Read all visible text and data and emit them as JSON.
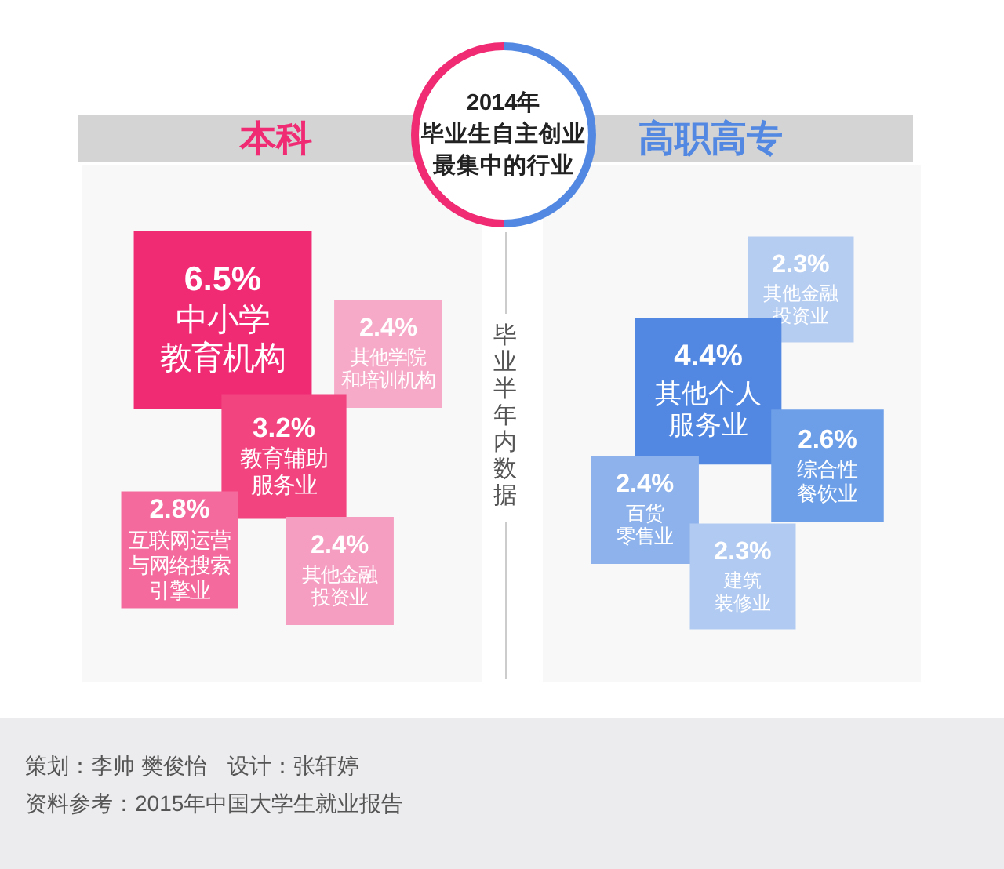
{
  "chart_data": [
    {
      "type": "other",
      "title": "2014年毕业生自主创业最集中的行业",
      "annotations": [
        "毕业半年内数据",
        "策划：李帅 樊俊怡",
        "设计：张轩婷",
        "资料参考：2015年中国大学生就业报告"
      ]
    },
    {
      "type": "other",
      "title": "本科",
      "categories": [
        "中小学教育机构",
        "其他学院和培训机构",
        "教育辅助服务业",
        "互联网运营与网络搜索引擎业",
        "其他金融投资业"
      ],
      "values": [
        6.5,
        2.4,
        3.2,
        2.8,
        2.4
      ],
      "value_labels": [
        "6.5%",
        "2.4%",
        "3.2%",
        "2.8%",
        "2.4%"
      ],
      "colors": [
        "#f02b74",
        "#f7aac8",
        "#f2447f",
        "#f46a9d",
        "#f59ec1"
      ]
    },
    {
      "type": "other",
      "title": "高职高专",
      "categories": [
        "其他金融投资业",
        "其他个人服务业",
        "综合性餐饮业",
        "百货零售业",
        "建筑装修业"
      ],
      "values": [
        2.3,
        4.4,
        2.6,
        2.4,
        2.3
      ],
      "value_labels": [
        "2.3%",
        "4.4%",
        "2.6%",
        "2.4%",
        "2.3%"
      ],
      "colors": [
        "#b6cdf2",
        "#5288e2",
        "#6d9fe8",
        "#8eb3ec",
        "#b1caf1"
      ]
    }
  ]
}
